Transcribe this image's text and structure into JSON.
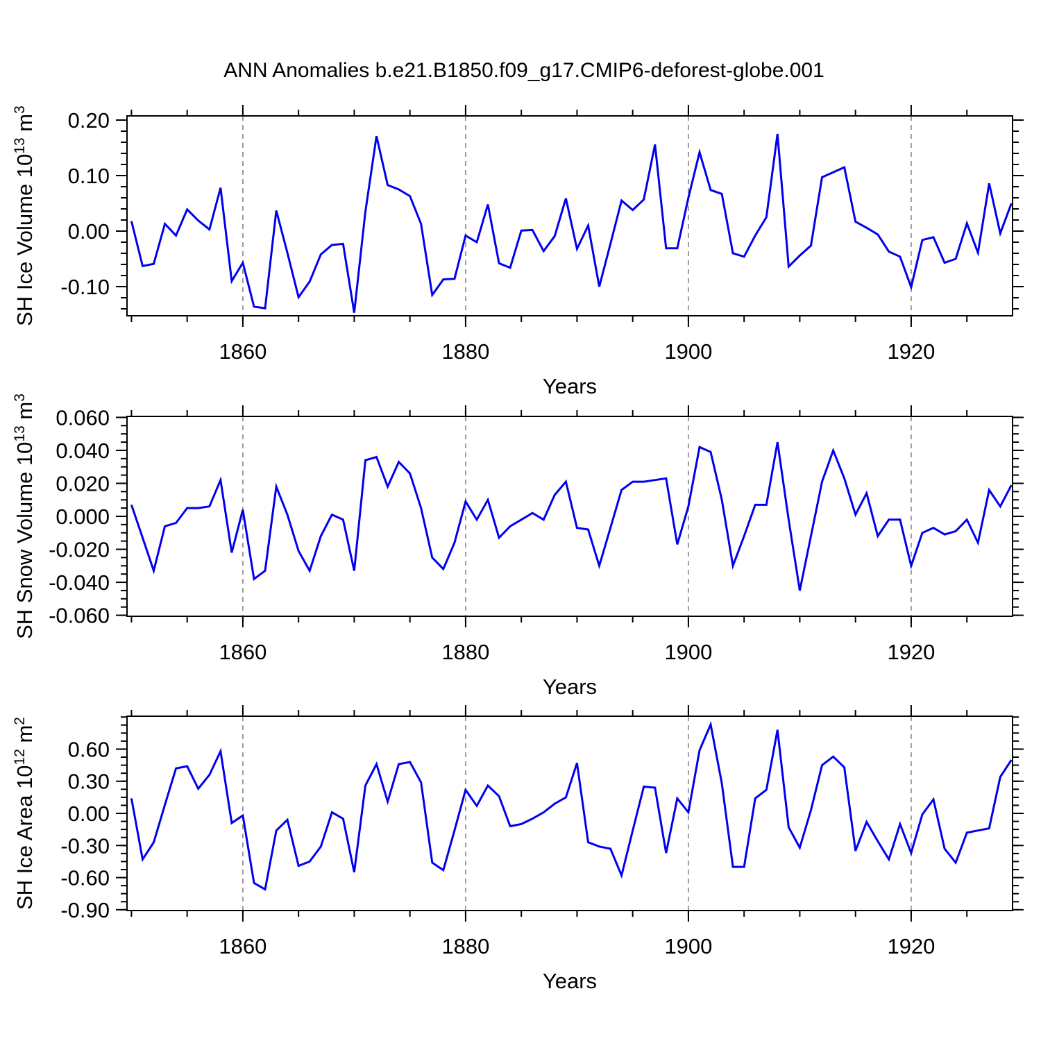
{
  "title": "ANN Anomalies b.e21.B1850.f09_g17.CMIP6-deforest-globe.001",
  "years": [
    1850,
    1851,
    1852,
    1853,
    1854,
    1855,
    1856,
    1857,
    1858,
    1859,
    1860,
    1861,
    1862,
    1863,
    1864,
    1865,
    1866,
    1867,
    1868,
    1869,
    1870,
    1871,
    1872,
    1873,
    1874,
    1875,
    1876,
    1877,
    1878,
    1879,
    1880,
    1881,
    1882,
    1883,
    1884,
    1885,
    1886,
    1887,
    1888,
    1889,
    1890,
    1891,
    1892,
    1893,
    1894,
    1895,
    1896,
    1897,
    1898,
    1899,
    1900,
    1901,
    1902,
    1903,
    1904,
    1905,
    1906,
    1907,
    1908,
    1909,
    1910,
    1911,
    1912,
    1913,
    1914,
    1915,
    1916,
    1917,
    1918,
    1919,
    1920,
    1921,
    1922,
    1923,
    1924,
    1925,
    1926,
    1927,
    1928,
    1929
  ],
  "chart_data": [
    {
      "id": "ice-volume",
      "type": "line",
      "ylabel_text": "SH Ice Volume 10^13 m^3",
      "ylabel_parts": [
        {
          "t": "SH Ice Volume 10"
        },
        {
          "t": "13",
          "sup": true
        },
        {
          "t": " m"
        },
        {
          "t": "3",
          "sup": true
        }
      ],
      "xlabel": "Years",
      "ylim": [
        -0.1525,
        0.2075
      ],
      "xlim": [
        1849.6,
        1929.1
      ],
      "y_major_ticks": [
        {
          "v": 0.2,
          "label": "0.20"
        },
        {
          "v": 0.1,
          "label": "0.10"
        },
        {
          "v": 0.0,
          "label": "0.00"
        },
        {
          "v": -0.1,
          "label": "-0.10"
        }
      ],
      "y_minor_step": 0.02,
      "x_major_ticks": [
        {
          "v": 1860,
          "label": "1860"
        },
        {
          "v": 1880,
          "label": "1880"
        },
        {
          "v": 1900,
          "label": "1900"
        },
        {
          "v": 1920,
          "label": "1920"
        }
      ],
      "x_minor_step": 5,
      "grid": "dashed-vertical-at-x-majors",
      "line_color": "#0000EE",
      "values": [
        0.018,
        -0.063,
        -0.059,
        0.013,
        -0.008,
        0.039,
        0.019,
        0.003,
        0.078,
        -0.09,
        -0.057,
        -0.136,
        -0.139,
        0.037,
        -0.039,
        -0.119,
        -0.091,
        -0.042,
        -0.025,
        -0.023,
        -0.147,
        0.035,
        0.171,
        0.083,
        0.075,
        0.063,
        0.013,
        -0.115,
        -0.087,
        -0.086,
        -0.008,
        -0.02,
        0.048,
        -0.058,
        -0.066,
        0.001,
        0.002,
        -0.036,
        -0.009,
        0.059,
        -0.032,
        0.01,
        -0.1,
        -0.023,
        0.055,
        0.038,
        0.057,
        0.156,
        -0.031,
        -0.031,
        0.06,
        0.142,
        0.074,
        0.067,
        -0.04,
        -0.046,
        -0.008,
        0.025,
        0.175,
        -0.064,
        -0.044,
        -0.026,
        0.097,
        0.106,
        0.115,
        0.017,
        0.006,
        -0.006,
        -0.037,
        -0.046,
        -0.101,
        -0.016,
        -0.011,
        -0.057,
        -0.05,
        0.014,
        -0.039,
        0.086,
        -0.004,
        0.05
      ]
    },
    {
      "id": "snow-volume",
      "type": "line",
      "ylabel_text": "SH Snow Volume 10^13 m^3",
      "ylabel_parts": [
        {
          "t": "SH Snow Volume 10"
        },
        {
          "t": "13",
          "sup": true
        },
        {
          "t": " m"
        },
        {
          "t": "3",
          "sup": true
        }
      ],
      "xlabel": "Years",
      "ylim": [
        -0.0606,
        0.0606
      ],
      "xlim": [
        1849.6,
        1929.1
      ],
      "y_major_ticks": [
        {
          "v": 0.06,
          "label": "0.060"
        },
        {
          "v": 0.04,
          "label": "0.040"
        },
        {
          "v": 0.02,
          "label": "0.020"
        },
        {
          "v": 0.0,
          "label": "0.000"
        },
        {
          "v": -0.02,
          "label": "-0.020"
        },
        {
          "v": -0.04,
          "label": "-0.040"
        },
        {
          "v": -0.06,
          "label": "-0.060"
        }
      ],
      "y_minor_step": 0.005,
      "x_major_ticks": [
        {
          "v": 1860,
          "label": "1860"
        },
        {
          "v": 1880,
          "label": "1880"
        },
        {
          "v": 1900,
          "label": "1900"
        },
        {
          "v": 1920,
          "label": "1920"
        }
      ],
      "x_minor_step": 5,
      "grid": "dashed-vertical-at-x-majors",
      "line_color": "#0000EE",
      "values": [
        0.007,
        -0.013,
        -0.033,
        -0.006,
        -0.004,
        0.005,
        0.005,
        0.006,
        0.022,
        -0.022,
        0.004,
        -0.038,
        -0.033,
        0.018,
        0.001,
        -0.021,
        -0.033,
        -0.012,
        0.001,
        -0.002,
        -0.033,
        0.034,
        0.036,
        0.018,
        0.033,
        0.026,
        0.005,
        -0.025,
        -0.032,
        -0.016,
        0.009,
        -0.002,
        0.01,
        -0.013,
        -0.006,
        -0.002,
        0.002,
        -0.002,
        0.013,
        0.021,
        -0.007,
        -0.008,
        -0.03,
        -0.007,
        0.016,
        0.021,
        0.021,
        0.022,
        0.023,
        -0.017,
        0.006,
        0.042,
        0.039,
        0.01,
        -0.03,
        -0.012,
        0.007,
        0.007,
        0.045,
        -0.002,
        -0.045,
        -0.012,
        0.021,
        0.04,
        0.023,
        0.001,
        0.014,
        -0.012,
        -0.002,
        -0.002,
        -0.03,
        -0.01,
        -0.007,
        -0.011,
        -0.009,
        -0.002,
        -0.016,
        0.016,
        0.006,
        0.019
      ]
    },
    {
      "id": "ice-area",
      "type": "line",
      "ylabel_text": "SH Ice Area 10^12 m^2",
      "ylabel_parts": [
        {
          "t": "SH Ice Area 10"
        },
        {
          "t": "12",
          "sup": true
        },
        {
          "t": " m"
        },
        {
          "t": "2",
          "sup": true
        }
      ],
      "xlabel": "Years",
      "ylim": [
        -0.9075,
        0.9075
      ],
      "xlim": [
        1849.6,
        1929.1
      ],
      "y_major_ticks": [
        {
          "v": 0.6,
          "label": "0.60"
        },
        {
          "v": 0.3,
          "label": "0.30"
        },
        {
          "v": 0.0,
          "label": "0.00"
        },
        {
          "v": -0.3,
          "label": "-0.30"
        },
        {
          "v": -0.6,
          "label": "-0.60"
        },
        {
          "v": -0.9,
          "label": "-0.90"
        }
      ],
      "y_minor_step": 0.075,
      "x_major_ticks": [
        {
          "v": 1860,
          "label": "1860"
        },
        {
          "v": 1880,
          "label": "1880"
        },
        {
          "v": 1900,
          "label": "1900"
        },
        {
          "v": 1920,
          "label": "1920"
        }
      ],
      "x_minor_step": 5,
      "grid": "dashed-vertical-at-x-majors",
      "line_color": "#0000EE",
      "values": [
        0.14,
        -0.43,
        -0.27,
        0.08,
        0.42,
        0.44,
        0.23,
        0.36,
        0.58,
        -0.09,
        -0.02,
        -0.65,
        -0.71,
        -0.16,
        -0.06,
        -0.49,
        -0.45,
        -0.31,
        0.01,
        -0.05,
        -0.55,
        0.26,
        0.46,
        0.11,
        0.46,
        0.48,
        0.29,
        -0.46,
        -0.53,
        -0.16,
        0.22,
        0.07,
        0.26,
        0.16,
        -0.12,
        -0.1,
        -0.05,
        0.01,
        0.09,
        0.15,
        0.47,
        -0.27,
        -0.31,
        -0.33,
        -0.58,
        -0.16,
        0.25,
        0.24,
        -0.37,
        0.14,
        0.01,
        0.59,
        0.83,
        0.28,
        -0.5,
        -0.5,
        0.14,
        0.22,
        0.78,
        -0.13,
        -0.32,
        0.03,
        0.45,
        0.53,
        0.43,
        -0.35,
        -0.08,
        -0.26,
        -0.43,
        -0.1,
        -0.37,
        -0.01,
        0.13,
        -0.33,
        -0.46,
        -0.18,
        -0.16,
        -0.14,
        0.34,
        0.5
      ]
    }
  ]
}
